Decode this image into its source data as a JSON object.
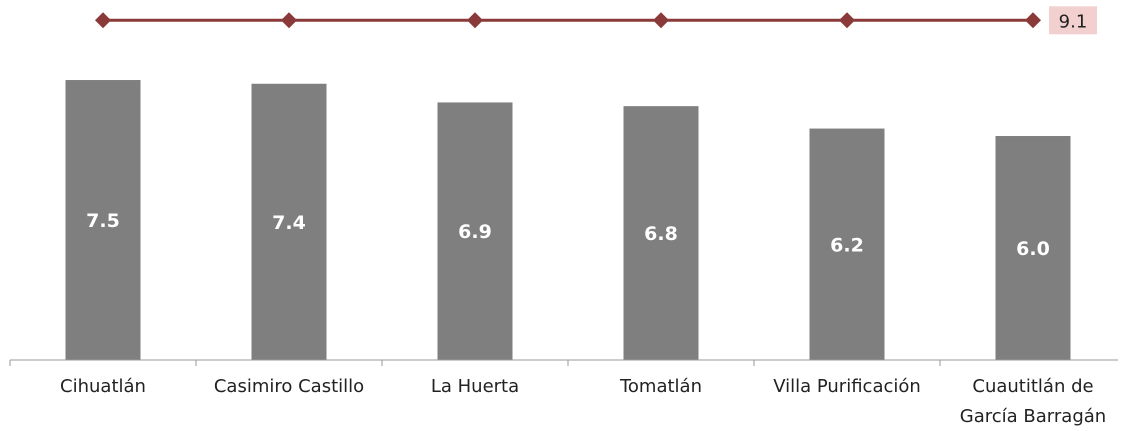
{
  "chart_data": {
    "type": "bar",
    "categories": [
      [
        "Cihuatlán"
      ],
      [
        "Casimiro Castillo"
      ],
      [
        "La Huerta"
      ],
      [
        "Tomatlán"
      ],
      [
        "Villa Purificación"
      ],
      [
        "Cuautitlán de",
        "García Barragán"
      ]
    ],
    "values": [
      7.5,
      7.4,
      6.9,
      6.8,
      6.2,
      6.0
    ],
    "value_labels": [
      "7.5",
      "7.4",
      "6.9",
      "6.8",
      "6.2",
      "6.0"
    ],
    "reference_line": {
      "value": 9.1,
      "label": "9.1"
    },
    "ylim": [
      0,
      9.4
    ],
    "legend": "none",
    "grid": false,
    "colors": {
      "bar": "#7f7f7f",
      "line": "#8b3a3a",
      "label_bg": "#f2d0d0"
    }
  }
}
